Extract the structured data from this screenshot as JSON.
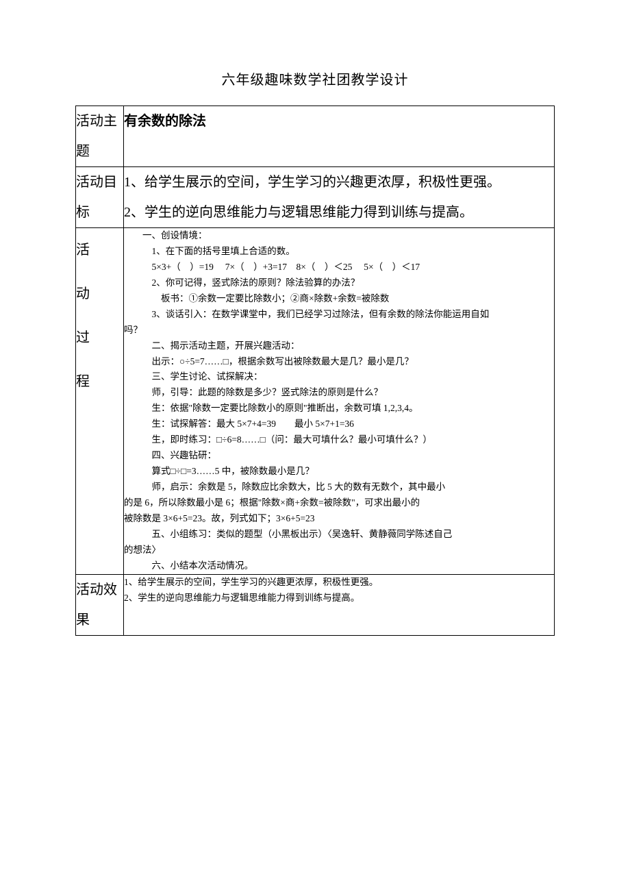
{
  "page_title": "六年级趣味数学社团教学设计",
  "rows": {
    "theme": {
      "label": "活动主题",
      "content": "有余数的除法"
    },
    "goal": {
      "label": "活动目标",
      "line1": "1、给学生展示的空间，学生学习的兴趣更浓厚，积极性更强。",
      "line2": "2、学生的逆向思维能力与逻辑思维能力得到训练与提高。"
    },
    "process": {
      "label_chars": [
        "活",
        "动",
        "过",
        "程"
      ],
      "lines": [
        {
          "indent": 1,
          "text": "一、创设情境："
        },
        {
          "indent": 2,
          "text": "1、在下面的括号里填上合适的数。"
        },
        {
          "indent": 2,
          "text": "5×3+（　）=19　 7×（　）+3=17　8×（　）＜25　 5×（　）＜17"
        },
        {
          "indent": 2,
          "text": "2、你可记得，竖式除法的原则？除法验算的办法？"
        },
        {
          "indent": 2,
          "text": "　板书：①余数一定要比除数小；②商×除数+余数=被除数"
        },
        {
          "indent": 2,
          "text": "3、谈话引入：在数学课堂中，我们已经学习过除法，但有余数的除法你能运用自如"
        },
        {
          "indent": 0,
          "text": "吗？"
        },
        {
          "indent": 2,
          "text": "二、揭示活动主题，开展兴趣活动："
        },
        {
          "indent": 2,
          "text": "出示：○÷5=7……□，根据余数写出被除数最大是几？最小是几？"
        },
        {
          "indent": 2,
          "text": "三、学生讨论、试探解决："
        },
        {
          "indent": 2,
          "text": "师，引导：此题的除数是多少？竖式除法的原则是什么？"
        },
        {
          "indent": 2,
          "text": "生：依据\"除数一定要比除数小的原则\"推断出，余数可填 1,2,3,4。"
        },
        {
          "indent": 2,
          "text": "生：试探解答：最大 5×7+4=39　　最小 5×7+1=36"
        },
        {
          "indent": 2,
          "text": "生，即时练习：□÷6=8……□（问：最大可填什么？最小可填什么？）"
        },
        {
          "indent": 2,
          "text": "四、兴趣钻研："
        },
        {
          "indent": 2,
          "text": "算式□÷□=3……5 中，被除数最小是几？"
        },
        {
          "indent": 2,
          "text": "师，启示：余数是 5，除数应比余数大，比 5 大的数有无数个，其中最小"
        },
        {
          "indent": 0,
          "text": "的是 6，所以除数最小是 6；根据\"除数×商+余数=被除数\"，可求出最小的"
        },
        {
          "indent": 0,
          "text": "被除数是 3×6+5=23。故，列式如下；3×6+5=23"
        },
        {
          "indent": 2,
          "text": "五、小组练习：类似的题型（小黑板出示）〈吴逸轩、黄静薇同学陈述自己"
        },
        {
          "indent": 0,
          "text": "的想法〉"
        },
        {
          "indent": 2,
          "text": "六、小结本次活动情况。"
        }
      ]
    },
    "effect": {
      "label": "活动效果",
      "line1": "1、给学生展示的空间，学生学习的兴趣更浓厚，积极性更强。",
      "line2": "2、学生的逆向思维能力与逻辑思维能力得到训练与提高。"
    }
  },
  "styling": {
    "background_color": "#ffffff",
    "border_color": "#000000",
    "title_fontsize": 20,
    "label_fontsize": 20,
    "body_fontsize": 13.5,
    "font_family": "SimSun"
  }
}
